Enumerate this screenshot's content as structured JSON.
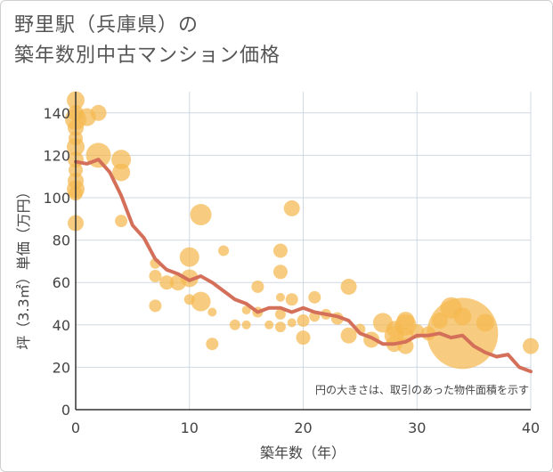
{
  "title_lines": [
    "野里駅（兵庫県）の",
    "築年数別中古マンション価格"
  ],
  "chart_data": {
    "type": "scatter",
    "title": "野里駅（兵庫県）の築年数別中古マンション価格",
    "xlabel": "築年数（年）",
    "ylabel": "坪（3.3㎡）単価（万円）",
    "xlim": [
      0,
      40
    ],
    "ylim": [
      0,
      150
    ],
    "xticks": [
      0,
      10,
      20,
      30,
      40
    ],
    "yticks": [
      0,
      20,
      40,
      60,
      80,
      100,
      120,
      140
    ],
    "grid": true,
    "note": "円の大きさは、取引のあった物件面積を示す",
    "colors": {
      "bubble": "#f5b84f",
      "line": "#d4705a"
    },
    "bubbles": [
      {
        "x": 0,
        "y": 146,
        "r": 10
      },
      {
        "x": 0,
        "y": 140,
        "r": 9
      },
      {
        "x": 0,
        "y": 137,
        "r": 12
      },
      {
        "x": 0,
        "y": 133,
        "r": 9
      },
      {
        "x": 0,
        "y": 128,
        "r": 8
      },
      {
        "x": 0,
        "y": 124,
        "r": 10
      },
      {
        "x": 0,
        "y": 118,
        "r": 9
      },
      {
        "x": 0,
        "y": 113,
        "r": 8
      },
      {
        "x": 0,
        "y": 108,
        "r": 9
      },
      {
        "x": 0,
        "y": 104,
        "r": 10
      },
      {
        "x": 0,
        "y": 102,
        "r": 8
      },
      {
        "x": 0,
        "y": 88,
        "r": 9
      },
      {
        "x": 1,
        "y": 138,
        "r": 10
      },
      {
        "x": 2,
        "y": 140,
        "r": 9
      },
      {
        "x": 2,
        "y": 120,
        "r": 14
      },
      {
        "x": 4,
        "y": 118,
        "r": 11
      },
      {
        "x": 4,
        "y": 112,
        "r": 10
      },
      {
        "x": 4,
        "y": 89,
        "r": 7
      },
      {
        "x": 7,
        "y": 69,
        "r": 6
      },
      {
        "x": 7,
        "y": 63,
        "r": 7
      },
      {
        "x": 7,
        "y": 49,
        "r": 7
      },
      {
        "x": 8,
        "y": 60,
        "r": 8
      },
      {
        "x": 9,
        "y": 60,
        "r": 9
      },
      {
        "x": 10,
        "y": 72,
        "r": 11
      },
      {
        "x": 10,
        "y": 62,
        "r": 10
      },
      {
        "x": 10,
        "y": 52,
        "r": 6
      },
      {
        "x": 11,
        "y": 92,
        "r": 12
      },
      {
        "x": 11,
        "y": 51,
        "r": 11
      },
      {
        "x": 12,
        "y": 46,
        "r": 5
      },
      {
        "x": 12,
        "y": 31,
        "r": 7
      },
      {
        "x": 13,
        "y": 75,
        "r": 6
      },
      {
        "x": 14,
        "y": 40,
        "r": 6
      },
      {
        "x": 15,
        "y": 47,
        "r": 5
      },
      {
        "x": 15,
        "y": 40,
        "r": 5
      },
      {
        "x": 16,
        "y": 58,
        "r": 7
      },
      {
        "x": 16,
        "y": 46,
        "r": 6
      },
      {
        "x": 17,
        "y": 40,
        "r": 5
      },
      {
        "x": 18,
        "y": 75,
        "r": 8
      },
      {
        "x": 18,
        "y": 65,
        "r": 8
      },
      {
        "x": 18,
        "y": 53,
        "r": 5
      },
      {
        "x": 18,
        "y": 45,
        "r": 6
      },
      {
        "x": 18,
        "y": 39,
        "r": 6
      },
      {
        "x": 19,
        "y": 95,
        "r": 9
      },
      {
        "x": 19,
        "y": 52,
        "r": 7
      },
      {
        "x": 19,
        "y": 41,
        "r": 5
      },
      {
        "x": 20,
        "y": 42,
        "r": 7
      },
      {
        "x": 20,
        "y": 34,
        "r": 8
      },
      {
        "x": 21,
        "y": 53,
        "r": 7
      },
      {
        "x": 21,
        "y": 44,
        "r": 6
      },
      {
        "x": 22,
        "y": 45,
        "r": 6
      },
      {
        "x": 23,
        "y": 43,
        "r": 7
      },
      {
        "x": 24,
        "y": 58,
        "r": 9
      },
      {
        "x": 24,
        "y": 35,
        "r": 9
      },
      {
        "x": 25,
        "y": 38,
        "r": 6
      },
      {
        "x": 26,
        "y": 33,
        "r": 9
      },
      {
        "x": 27,
        "y": 41,
        "r": 11
      },
      {
        "x": 28,
        "y": 38,
        "r": 9
      },
      {
        "x": 28,
        "y": 35,
        "r": 11
      },
      {
        "x": 28,
        "y": 31,
        "r": 9
      },
      {
        "x": 29,
        "y": 42,
        "r": 10
      },
      {
        "x": 29,
        "y": 40,
        "r": 12
      },
      {
        "x": 29,
        "y": 35,
        "r": 9
      },
      {
        "x": 29,
        "y": 30,
        "r": 9
      },
      {
        "x": 30,
        "y": 37,
        "r": 8
      },
      {
        "x": 31,
        "y": 36,
        "r": 8
      },
      {
        "x": 32,
        "y": 42,
        "r": 9
      },
      {
        "x": 33,
        "y": 48,
        "r": 12
      },
      {
        "x": 34,
        "y": 44,
        "r": 10
      },
      {
        "x": 34,
        "y": 36,
        "r": 40
      },
      {
        "x": 36,
        "y": 41,
        "r": 10
      },
      {
        "x": 40,
        "y": 30,
        "r": 9
      }
    ],
    "line": {
      "x": [
        0,
        1,
        2,
        3,
        4,
        5,
        6,
        7,
        8,
        9,
        10,
        11,
        12,
        13,
        14,
        15,
        16,
        17,
        18,
        19,
        20,
        21,
        22,
        23,
        24,
        25,
        26,
        27,
        28,
        29,
        30,
        31,
        32,
        33,
        34,
        35,
        36,
        37,
        38,
        39,
        40
      ],
      "y": [
        117,
        116,
        118,
        112,
        101,
        87,
        81,
        71,
        66,
        64,
        61,
        63,
        60,
        56,
        52,
        50,
        46,
        48,
        48,
        46,
        48,
        46,
        45,
        44,
        42,
        36,
        34,
        31,
        31,
        32,
        35,
        35,
        36,
        34,
        35,
        30,
        27,
        25,
        26,
        20,
        18
      ]
    }
  }
}
